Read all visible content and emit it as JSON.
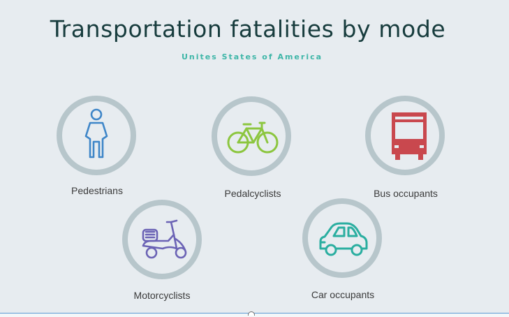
{
  "title": "Transportation fatalities by mode",
  "subtitle": "Unites States of America",
  "modes": [
    {
      "label": "Pedestrians",
      "icon": "pedestrian-icon",
      "color": "#3f86c8"
    },
    {
      "label": "Pedalcyclists",
      "icon": "bicycle-icon",
      "color": "#8cc63f"
    },
    {
      "label": "Bus occupants",
      "icon": "bus-icon",
      "color": "#c9484e"
    },
    {
      "label": "Motorcyclists",
      "icon": "scooter-icon",
      "color": "#6b63b5"
    },
    {
      "label": "Car occupants",
      "icon": "car-icon",
      "color": "#2aaea0"
    }
  ],
  "colors": {
    "background": "#e7ecf0",
    "ring": "#b7c6cb",
    "title": "#173c3d",
    "subtitle": "#3fb6a8"
  }
}
